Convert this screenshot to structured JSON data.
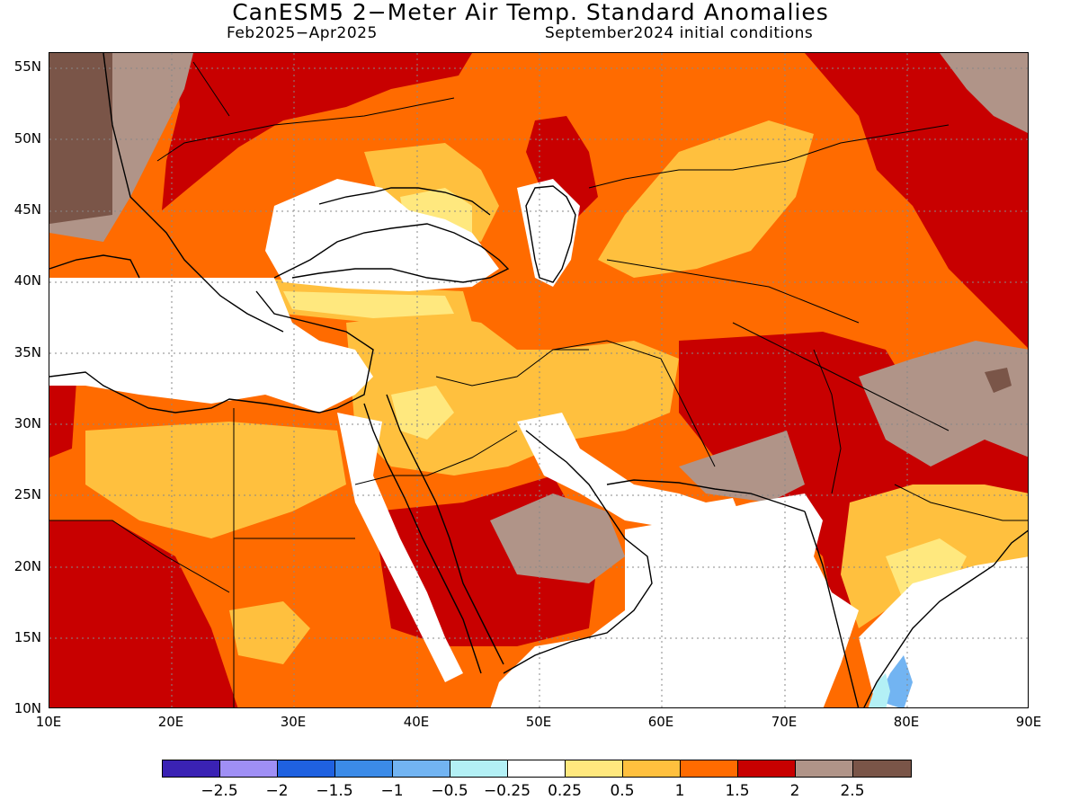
{
  "title": "CanESM5 2−Meter Air Temp. Standard Anomalies",
  "subtitle_left": "Feb2025−Apr2025",
  "subtitle_right": "September2024 initial conditions",
  "map": {
    "variable": "2-meter air temperature standard anomaly",
    "projection": "equirectangular",
    "lon_range": [
      10,
      90
    ],
    "lat_range": [
      10,
      56
    ],
    "grid": true
  },
  "lat_ticks": [
    "55N",
    "50N",
    "45N",
    "40N",
    "35N",
    "30N",
    "25N",
    "20N",
    "15N",
    "10N"
  ],
  "lon_ticks": [
    "10E",
    "20E",
    "30E",
    "40E",
    "50E",
    "60E",
    "70E",
    "80E",
    "90E"
  ],
  "colorbar": {
    "colors": [
      "#3a22b4",
      "#9f8ff5",
      "#1f61e0",
      "#3b8be8",
      "#72b4f2",
      "#b3f0f5",
      "#ffffff",
      "#ffe87e",
      "#ffc03e",
      "#ff6b00",
      "#c80000",
      "#b09488",
      "#7a5548"
    ],
    "labels": [
      "−2.5",
      "−2",
      "−1.5",
      "−1",
      "−0.5",
      "−0.25",
      "0.25",
      "0.5",
      "1",
      "1.5",
      "2",
      "2.5"
    ]
  }
}
